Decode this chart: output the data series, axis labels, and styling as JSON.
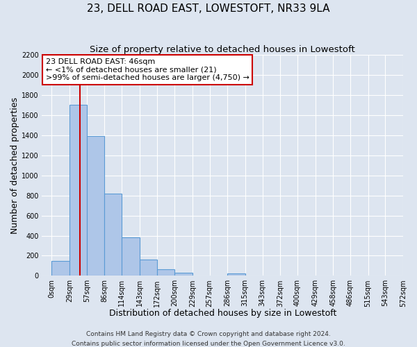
{
  "title": "23, DELL ROAD EAST, LOWESTOFT, NR33 9LA",
  "subtitle": "Size of property relative to detached houses in Lowestoft",
  "xlabel": "Distribution of detached houses by size in Lowestoft",
  "ylabel": "Number of detached properties",
  "bin_edges": [
    0,
    29,
    57,
    86,
    114,
    143,
    172,
    200,
    229,
    257,
    286,
    315,
    343,
    372,
    400,
    429,
    458,
    486,
    515,
    543,
    572
  ],
  "bin_labels": [
    "0sqm",
    "29sqm",
    "57sqm",
    "86sqm",
    "114sqm",
    "143sqm",
    "172sqm",
    "200sqm",
    "229sqm",
    "257sqm",
    "286sqm",
    "315sqm",
    "343sqm",
    "372sqm",
    "400sqm",
    "429sqm",
    "458sqm",
    "486sqm",
    "515sqm",
    "543sqm",
    "572sqm"
  ],
  "counts": [
    150,
    1700,
    1390,
    820,
    380,
    160,
    65,
    30,
    0,
    0,
    25,
    0,
    0,
    0,
    0,
    0,
    0,
    0,
    0,
    0
  ],
  "bar_color": "#aec6e8",
  "bar_edge_color": "#5b9bd5",
  "property_line_x": 46,
  "property_line_color": "#cc0000",
  "annotation_line1": "23 DELL ROAD EAST: 46sqm",
  "annotation_line2": "← <1% of detached houses are smaller (21)",
  "annotation_line3": ">99% of semi-detached houses are larger (4,750) →",
  "annotation_box_color": "#ffffff",
  "annotation_box_edge_color": "#cc0000",
  "ylim": [
    0,
    2200
  ],
  "yticks": [
    0,
    200,
    400,
    600,
    800,
    1000,
    1200,
    1400,
    1600,
    1800,
    2000,
    2200
  ],
  "footer_line1": "Contains HM Land Registry data © Crown copyright and database right 2024.",
  "footer_line2": "Contains public sector information licensed under the Open Government Licence v3.0.",
  "background_color": "#dde5f0",
  "plot_background_color": "#dde5f0",
  "grid_color": "#ffffff",
  "title_fontsize": 11,
  "subtitle_fontsize": 9.5,
  "axis_label_fontsize": 9,
  "tick_fontsize": 7,
  "annotation_fontsize": 8,
  "footer_fontsize": 6.5
}
